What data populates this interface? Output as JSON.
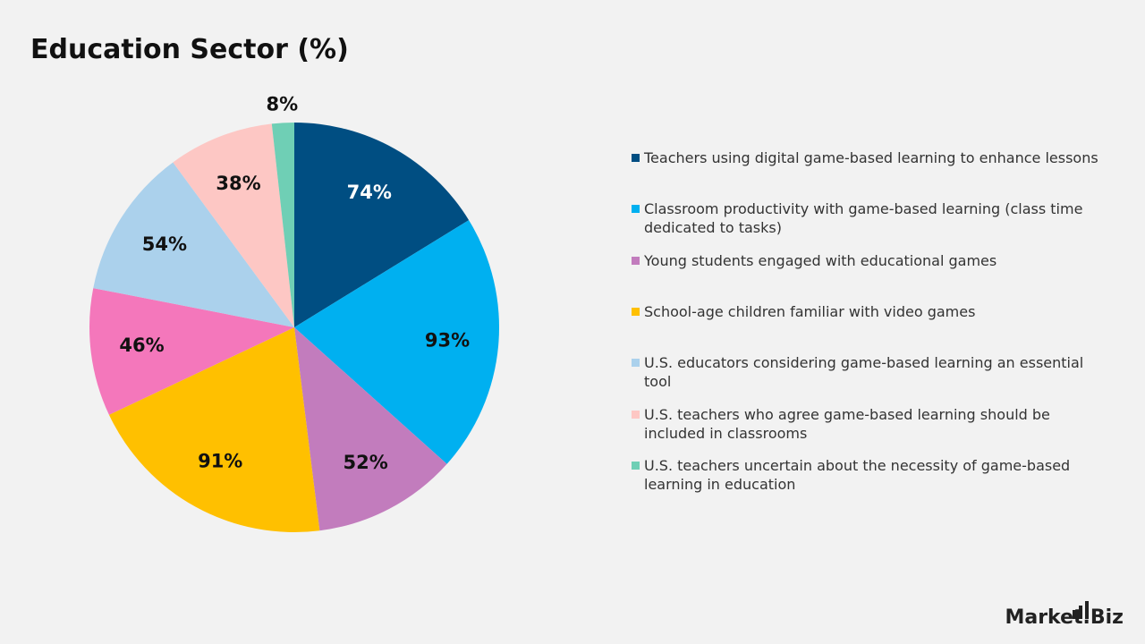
{
  "chart_data": {
    "type": "pie",
    "title": "Education Sector (%)",
    "categories": [
      "Teachers using digital game-based learning to enhance lessons",
      "Classroom productivity with game-based learning (class time dedicated to tasks)",
      "Young students engaged with educational games",
      "School-age children familiar with video games",
      null,
      "U.S. educators considering game-based learning an essential tool",
      "U.S. teachers who agree game-based learning should be included in classrooms",
      "U.S. teachers uncertain about the necessity of game-based learning in education"
    ],
    "values": [
      74,
      93,
      52,
      91,
      46,
      54,
      38,
      8
    ],
    "value_labels": [
      "74%",
      "93%",
      "52%",
      "91%",
      "46%",
      "54%",
      "38%",
      "8%"
    ],
    "colors": [
      "#004e82",
      "#00b0f0",
      "#c27cbd",
      "#ffc000",
      "#f477bb",
      "#abd1ec",
      "#fdc7c4",
      "#6fcfb5"
    ],
    "legend": "right"
  },
  "logo": "Market.Biz"
}
